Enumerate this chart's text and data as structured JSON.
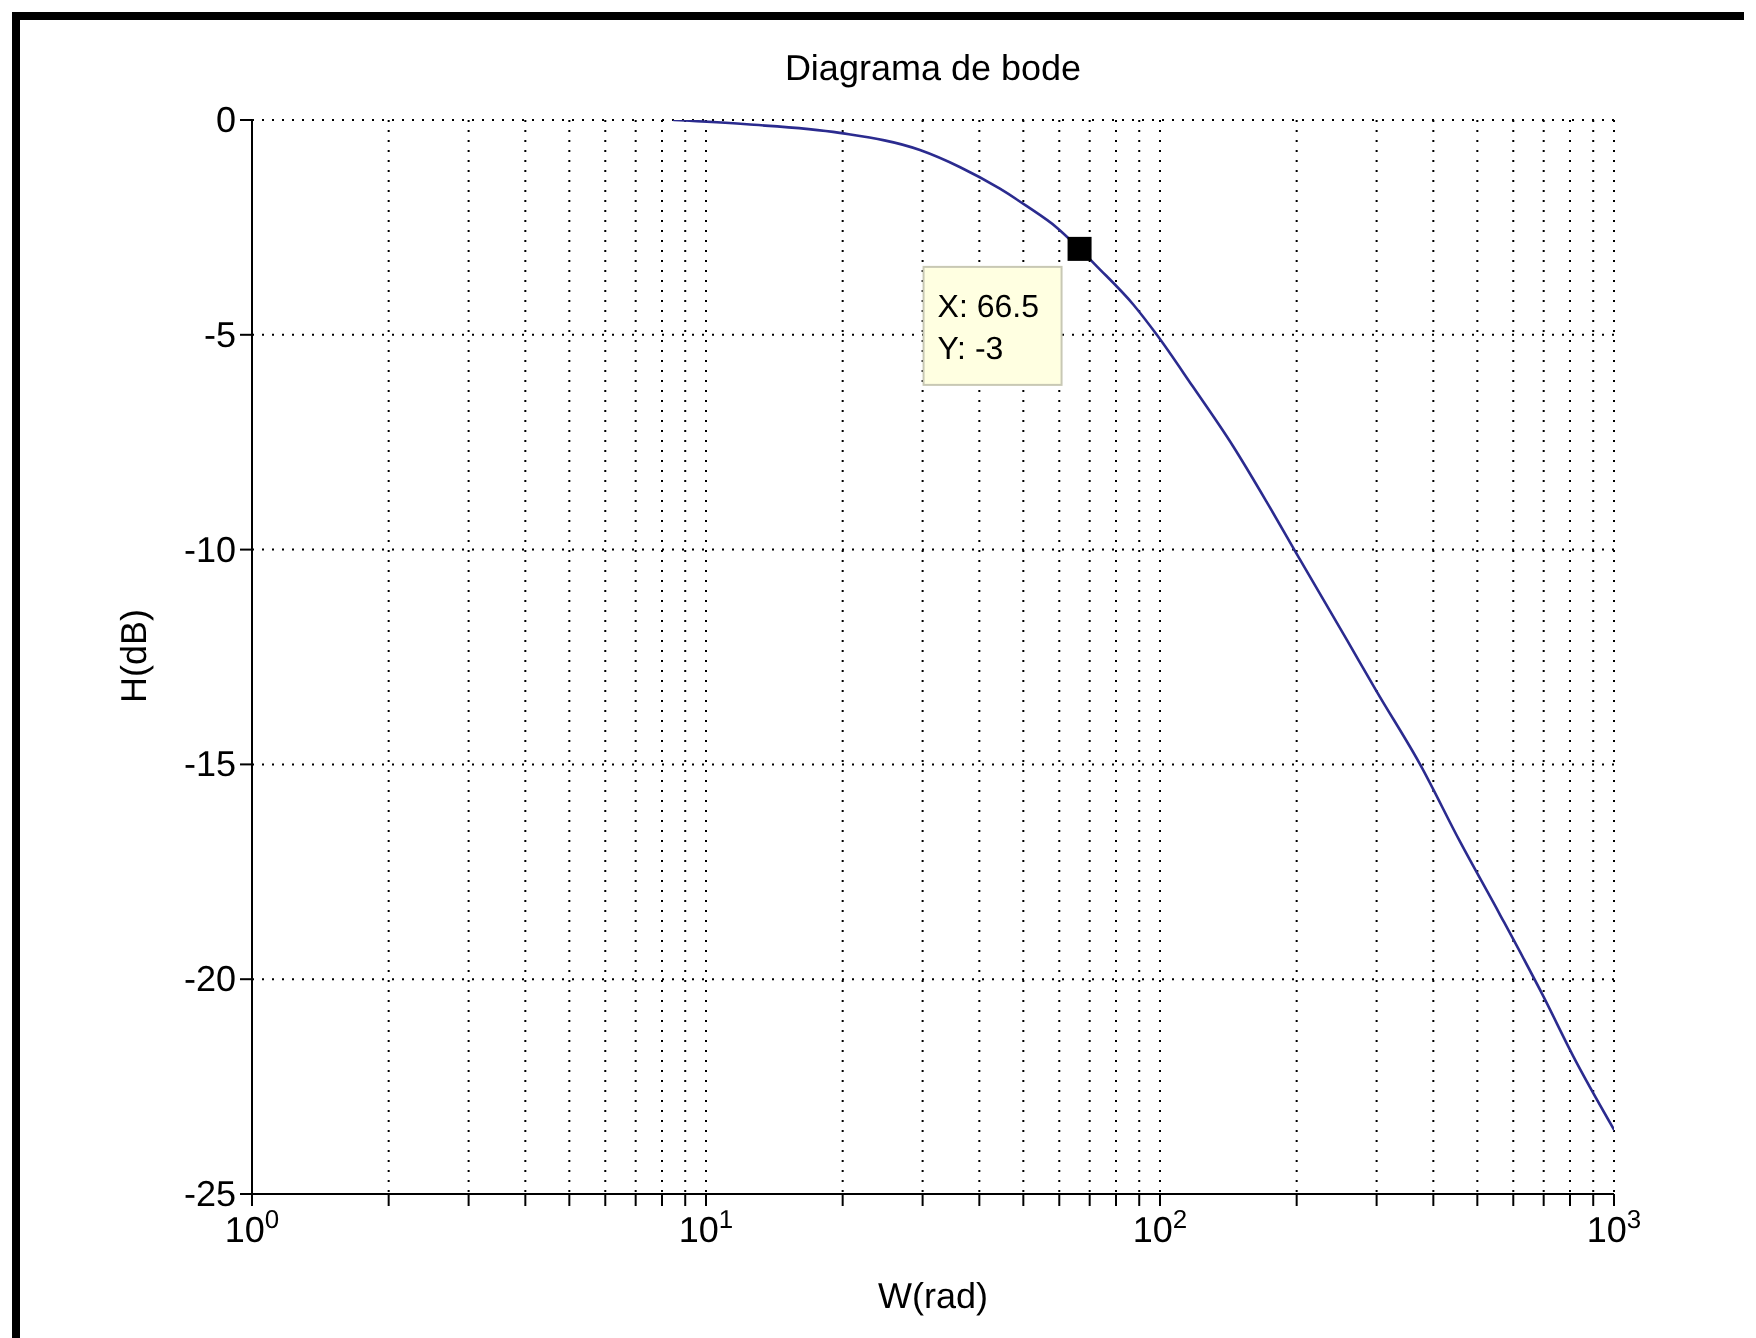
{
  "chart_data": {
    "type": "line",
    "title": "Diagrama de bode",
    "xlabel": "W(rad)",
    "ylabel": "H(dB)",
    "log": "x",
    "xlim": [
      1,
      1000
    ],
    "xticks": [
      {
        "value": 1,
        "label": "10$^{0}$"
      },
      {
        "value": 2,
        "label": null
      },
      {
        "value": 3,
        "label": null
      },
      {
        "value": 4,
        "label": null
      },
      {
        "value": 5,
        "label": null
      },
      {
        "value": 6,
        "label": null
      },
      {
        "value": 7,
        "label": null
      },
      {
        "value": 8,
        "label": null
      },
      {
        "value": 9,
        "label": null
      },
      {
        "value": 10,
        "label": "10$^{1}$"
      },
      {
        "value": 20,
        "label": null
      },
      {
        "value": 30,
        "label": null
      },
      {
        "value": 40,
        "label": null
      },
      {
        "value": 50,
        "label": null
      },
      {
        "value": 60,
        "label": null
      },
      {
        "value": 70,
        "label": null
      },
      {
        "value": 80,
        "label": null
      },
      {
        "value": 90,
        "label": null
      },
      {
        "value": 100,
        "label": "10$^{2}$"
      },
      {
        "value": 200,
        "label": null
      },
      {
        "value": 300,
        "label": null
      },
      {
        "value": 400,
        "label": null
      },
      {
        "value": 500,
        "label": null
      },
      {
        "value": 600,
        "label": null
      },
      {
        "value": 700,
        "label": null
      },
      {
        "value": 800,
        "label": null
      },
      {
        "value": 900,
        "label": null
      },
      {
        "value": 1000,
        "label": "10$^{3}$"
      }
    ],
    "ylim": [
      -25,
      0
    ],
    "yticks": [
      -25,
      -20,
      -15,
      -10,
      -5,
      0
    ],
    "grid": true,
    "line_style": "solid",
    "color": "#2b2b8f",
    "x": [
      8.5,
      12.3,
      19.7,
      29.6,
      36.3,
      44.4,
      50.8,
      59.2,
      66.5,
      72.5,
      87.4,
      98.4,
      118,
      145,
      172,
      200,
      258,
      300,
      374,
      458,
      561,
      699,
      814,
      1000
    ],
    "values": [
      0,
      -0.1,
      -0.3,
      -0.7,
      -1.1,
      -1.6,
      -2,
      -2.5,
      -3,
      -3.4,
      -4.3,
      -5,
      -6.2,
      -7.6,
      -8.9,
      -10.1,
      -12.1,
      -13.3,
      -15,
      -16.8,
      -18.5,
      -20.4,
      -21.8,
      -23.5
    ],
    "annotations": [
      {
        "text": "X: 66.5\nY: -3",
        "x": 66.5,
        "y": -3
      }
    ]
  }
}
